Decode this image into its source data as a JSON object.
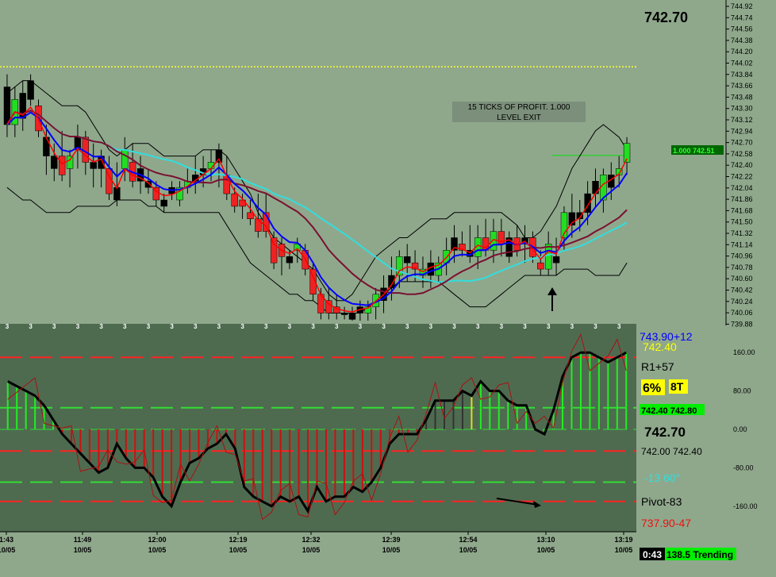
{
  "chart_data": {
    "type": "candlestick",
    "price_panel": {
      "ylim": [
        739.88,
        744.92
      ],
      "last_price": "742.70",
      "y_ticks": [
        "744.92",
        "744.74",
        "744.56",
        "744.38",
        "744.20",
        "744.02",
        "743.84",
        "743.66",
        "743.48",
        "743.30",
        "743.12",
        "742.94",
        "742.70",
        "742.58",
        "742.40",
        "742.22",
        "742.04",
        "741.86",
        "741.68",
        "741.50",
        "741.32",
        "741.14",
        "740.96",
        "740.78",
        "740.60",
        "740.42",
        "740.24",
        "740.06",
        "739.88"
      ],
      "resistance_line": 743.92,
      "annotation_line1": "15 TICKS OF PROFIT. 1.000",
      "annotation_line2": "LEVEL EXIT",
      "target_label": "1.000 742.51",
      "target_price": 742.51,
      "bar_marker": "3",
      "candles": [
        {
          "o": 743.6,
          "h": 743.8,
          "l": 742.8,
          "c": 743.0,
          "up": false
        },
        {
          "o": 743.0,
          "h": 743.6,
          "l": 742.8,
          "c": 743.4,
          "up": true
        },
        {
          "o": 743.5,
          "h": 743.7,
          "l": 742.9,
          "c": 743.1,
          "up": false
        },
        {
          "o": 743.7,
          "h": 743.8,
          "l": 743.3,
          "c": 743.4,
          "up": false
        },
        {
          "o": 743.3,
          "h": 743.4,
          "l": 742.8,
          "c": 742.9,
          "up": false
        },
        {
          "o": 742.8,
          "h": 743.0,
          "l": 742.2,
          "c": 742.5,
          "up": false
        },
        {
          "o": 742.5,
          "h": 742.7,
          "l": 742.1,
          "c": 742.3,
          "up": false
        },
        {
          "o": 742.5,
          "h": 742.9,
          "l": 742.1,
          "c": 742.2,
          "up": false
        },
        {
          "o": 742.3,
          "h": 742.6,
          "l": 742.0,
          "c": 742.5,
          "up": true
        },
        {
          "o": 742.6,
          "h": 743.0,
          "l": 742.3,
          "c": 742.8,
          "up": false
        },
        {
          "o": 742.8,
          "h": 742.9,
          "l": 742.2,
          "c": 742.4,
          "up": false
        },
        {
          "o": 742.4,
          "h": 742.7,
          "l": 742.0,
          "c": 742.3,
          "up": false
        },
        {
          "o": 742.3,
          "h": 742.6,
          "l": 742.0,
          "c": 742.5,
          "up": false
        },
        {
          "o": 742.3,
          "h": 742.5,
          "l": 741.8,
          "c": 741.9,
          "up": false
        },
        {
          "o": 742.0,
          "h": 742.4,
          "l": 741.7,
          "c": 741.8,
          "up": false
        },
        {
          "o": 742.3,
          "h": 742.8,
          "l": 742.1,
          "c": 742.6,
          "up": true
        },
        {
          "o": 742.4,
          "h": 742.7,
          "l": 742.0,
          "c": 742.1,
          "up": false
        },
        {
          "o": 742.3,
          "h": 742.5,
          "l": 741.9,
          "c": 742.1,
          "up": false
        },
        {
          "o": 742.1,
          "h": 742.3,
          "l": 741.9,
          "c": 742.0,
          "up": false
        },
        {
          "o": 742.0,
          "h": 742.1,
          "l": 741.7,
          "c": 741.8,
          "up": false
        },
        {
          "o": 741.7,
          "h": 741.9,
          "l": 741.6,
          "c": 741.8,
          "up": false
        },
        {
          "o": 742.0,
          "h": 742.1,
          "l": 741.8,
          "c": 741.9,
          "up": false
        },
        {
          "o": 741.8,
          "h": 742.1,
          "l": 741.7,
          "c": 742.0,
          "up": true
        },
        {
          "o": 742.0,
          "h": 742.3,
          "l": 741.9,
          "c": 742.1,
          "up": true
        },
        {
          "o": 742.1,
          "h": 742.5,
          "l": 741.9,
          "c": 742.2,
          "up": false
        },
        {
          "o": 742.2,
          "h": 742.5,
          "l": 742.0,
          "c": 742.3,
          "up": false
        },
        {
          "o": 742.3,
          "h": 742.6,
          "l": 742.1,
          "c": 742.4,
          "up": true
        },
        {
          "o": 742.4,
          "h": 742.7,
          "l": 742.0,
          "c": 742.6,
          "up": false
        },
        {
          "o": 742.2,
          "h": 742.5,
          "l": 741.8,
          "c": 741.9,
          "up": false
        },
        {
          "o": 741.9,
          "h": 742.0,
          "l": 741.6,
          "c": 741.7,
          "up": false
        },
        {
          "o": 741.8,
          "h": 741.9,
          "l": 741.5,
          "c": 741.7,
          "up": false
        },
        {
          "o": 741.6,
          "h": 741.8,
          "l": 741.4,
          "c": 741.5,
          "up": false
        },
        {
          "o": 741.5,
          "h": 741.9,
          "l": 741.2,
          "c": 741.3,
          "up": false
        },
        {
          "o": 741.6,
          "h": 741.9,
          "l": 741.2,
          "c": 741.3,
          "up": false
        },
        {
          "o": 741.2,
          "h": 741.3,
          "l": 740.7,
          "c": 740.8,
          "up": false
        },
        {
          "o": 741.1,
          "h": 741.2,
          "l": 740.6,
          "c": 740.9,
          "up": false
        },
        {
          "o": 740.8,
          "h": 741.0,
          "l": 740.7,
          "c": 740.9,
          "up": false
        },
        {
          "o": 741.0,
          "h": 741.2,
          "l": 740.8,
          "c": 741.1,
          "up": true
        },
        {
          "o": 741.0,
          "h": 741.1,
          "l": 740.6,
          "c": 740.7,
          "up": false
        },
        {
          "o": 740.7,
          "h": 740.8,
          "l": 740.2,
          "c": 740.3,
          "up": false
        },
        {
          "o": 740.3,
          "h": 740.4,
          "l": 739.9,
          "c": 740.0,
          "up": false
        },
        {
          "o": 740.2,
          "h": 740.4,
          "l": 739.9,
          "c": 740.0,
          "up": false
        },
        {
          "o": 740.1,
          "h": 740.3,
          "l": 739.9,
          "c": 740.0,
          "up": false
        },
        {
          "o": 740.0,
          "h": 740.1,
          "l": 739.9,
          "c": 740.0,
          "up": false
        },
        {
          "o": 739.9,
          "h": 740.1,
          "l": 739.88,
          "c": 740.0,
          "up": false
        },
        {
          "o": 740.0,
          "h": 740.2,
          "l": 739.88,
          "c": 740.1,
          "up": false
        },
        {
          "o": 740.0,
          "h": 740.2,
          "l": 739.88,
          "c": 740.1,
          "up": true
        },
        {
          "o": 740.1,
          "h": 740.4,
          "l": 739.9,
          "c": 740.3,
          "up": true
        },
        {
          "o": 740.2,
          "h": 740.6,
          "l": 740.0,
          "c": 740.4,
          "up": false
        },
        {
          "o": 740.4,
          "h": 740.9,
          "l": 740.2,
          "c": 740.6,
          "up": false
        },
        {
          "o": 740.6,
          "h": 741.0,
          "l": 740.4,
          "c": 740.9,
          "up": true
        },
        {
          "o": 740.9,
          "h": 741.1,
          "l": 740.5,
          "c": 740.8,
          "up": false
        },
        {
          "o": 740.8,
          "h": 741.0,
          "l": 740.5,
          "c": 740.7,
          "up": false
        },
        {
          "o": 740.7,
          "h": 740.9,
          "l": 740.4,
          "c": 740.6,
          "up": true
        },
        {
          "o": 740.6,
          "h": 741.0,
          "l": 740.4,
          "c": 740.8,
          "up": false
        },
        {
          "o": 740.6,
          "h": 740.9,
          "l": 740.5,
          "c": 740.8,
          "up": true
        },
        {
          "o": 740.8,
          "h": 741.2,
          "l": 740.6,
          "c": 741.0,
          "up": true
        },
        {
          "o": 741.0,
          "h": 741.4,
          "l": 740.8,
          "c": 741.2,
          "up": false
        },
        {
          "o": 741.1,
          "h": 741.3,
          "l": 740.9,
          "c": 741.0,
          "up": false
        },
        {
          "o": 741.0,
          "h": 741.4,
          "l": 740.8,
          "c": 740.9,
          "up": false
        },
        {
          "o": 740.9,
          "h": 741.4,
          "l": 740.7,
          "c": 741.2,
          "up": true
        },
        {
          "o": 741.2,
          "h": 741.5,
          "l": 740.9,
          "c": 741.0,
          "up": false
        },
        {
          "o": 741.0,
          "h": 741.5,
          "l": 740.8,
          "c": 741.3,
          "up": true
        },
        {
          "o": 741.3,
          "h": 741.5,
          "l": 740.9,
          "c": 741.1,
          "up": false
        },
        {
          "o": 740.9,
          "h": 741.3,
          "l": 740.8,
          "c": 741.2,
          "up": false
        },
        {
          "o": 741.2,
          "h": 741.4,
          "l": 740.9,
          "c": 741.0,
          "up": false
        },
        {
          "o": 741.1,
          "h": 741.4,
          "l": 740.8,
          "c": 741.2,
          "up": false
        },
        {
          "o": 741.2,
          "h": 741.3,
          "l": 740.8,
          "c": 740.9,
          "up": false
        },
        {
          "o": 740.8,
          "h": 741.0,
          "l": 740.6,
          "c": 740.7,
          "up": false
        },
        {
          "o": 740.7,
          "h": 741.3,
          "l": 740.6,
          "c": 741.1,
          "up": true
        },
        {
          "o": 740.8,
          "h": 741.2,
          "l": 740.6,
          "c": 740.9,
          "up": false
        },
        {
          "o": 741.2,
          "h": 741.7,
          "l": 741.0,
          "c": 741.6,
          "up": true
        },
        {
          "o": 741.4,
          "h": 741.9,
          "l": 741.2,
          "c": 741.6,
          "up": false
        },
        {
          "o": 741.5,
          "h": 741.8,
          "l": 741.3,
          "c": 741.6,
          "up": false
        },
        {
          "o": 741.6,
          "h": 742.1,
          "l": 741.4,
          "c": 741.9,
          "up": false
        },
        {
          "o": 741.9,
          "h": 742.3,
          "l": 741.7,
          "c": 742.1,
          "up": false
        },
        {
          "o": 741.8,
          "h": 742.3,
          "l": 741.6,
          "c": 742.2,
          "up": true
        },
        {
          "o": 742.0,
          "h": 742.4,
          "l": 741.8,
          "c": 742.2,
          "up": false
        },
        {
          "o": 742.2,
          "h": 742.5,
          "l": 742.0,
          "c": 742.3,
          "up": true
        },
        {
          "o": 742.4,
          "h": 742.8,
          "l": 742.2,
          "c": 742.7,
          "up": true
        }
      ],
      "lines": {
        "black_upper": [
          743.5,
          743.6,
          743.7,
          743.7,
          743.6,
          743.5,
          743.4,
          743.3,
          743.3,
          743.3,
          743.2,
          743.0,
          742.8,
          742.6,
          742.5,
          742.6,
          742.7,
          742.7,
          742.7,
          742.6,
          742.5,
          742.5,
          742.5,
          742.5,
          742.5,
          742.6,
          742.6,
          742.6,
          742.5,
          742.3,
          742.1,
          741.9,
          741.6,
          741.4,
          741.2,
          741.1,
          741.0,
          740.9,
          740.8,
          740.7,
          740.5,
          740.3,
          740.2,
          740.2,
          740.3,
          740.5,
          740.7,
          740.9,
          741.0,
          741.1,
          741.2,
          741.2,
          741.3,
          741.4,
          741.5,
          741.5,
          741.5,
          741.6,
          741.6,
          741.6,
          741.6,
          741.6,
          741.6,
          741.6,
          741.5,
          741.4,
          741.2,
          741.2,
          741.3,
          741.5,
          741.7,
          742.0,
          742.3,
          742.5,
          742.7,
          742.9,
          743.0,
          742.9,
          742.8,
          742.6
        ],
        "black_lower": [
          742.0,
          741.9,
          741.8,
          741.8,
          741.7,
          741.6,
          741.6,
          741.6,
          741.6,
          741.7,
          741.7,
          741.7,
          741.7,
          741.7,
          741.8,
          741.8,
          741.8,
          741.8,
          741.7,
          741.7,
          741.6,
          741.6,
          741.6,
          741.6,
          741.6,
          741.6,
          741.6,
          741.6,
          741.4,
          741.2,
          741.0,
          740.8,
          740.7,
          740.6,
          740.5,
          740.4,
          740.3,
          740.3,
          740.2,
          740.2,
          740.1,
          740.0,
          740.0,
          740.0,
          740.0,
          740.0,
          740.1,
          740.2,
          740.3,
          740.4,
          740.5,
          740.5,
          740.5,
          740.5,
          740.5,
          740.5,
          740.4,
          740.3,
          740.2,
          740.1,
          740.1,
          740.1,
          740.2,
          740.3,
          740.4,
          740.5,
          740.6,
          740.6,
          740.6,
          740.6,
          740.6,
          740.7,
          740.7,
          740.7,
          740.7,
          740.6,
          740.6,
          740.6,
          740.6,
          740.8
        ]
      }
    },
    "oscillator_panel": {
      "ylim": [
        -200,
        200
      ],
      "y_ticks": [
        "160.00",
        "80.00",
        "0.00",
        "-80.00",
        "-160.00"
      ],
      "series": [
        {
          "values": [
            100,
            90,
            80,
            70,
            50,
            20,
            -10,
            -30,
            -50,
            -70,
            -90,
            -80,
            -30,
            -60,
            -80,
            -80,
            -100,
            -140,
            -160,
            -110,
            -70,
            -60,
            -40,
            -30,
            -10,
            -40,
            -120,
            -140,
            -150,
            -160,
            -140,
            -150,
            -140,
            -170,
            -120,
            -150,
            -140,
            -140,
            -120,
            -130,
            -110,
            -80,
            -30,
            -10,
            -10,
            -10,
            20,
            60,
            60,
            60,
            80,
            70,
            100,
            80,
            80,
            60,
            50,
            50,
            0,
            -10,
            40,
            110,
            150,
            160,
            160,
            150,
            140,
            150,
            160
          ],
          "colors": [
            "g",
            "g",
            "g",
            "g",
            "g",
            "g",
            "r",
            "r",
            "r",
            "r",
            "r",
            "r",
            "r",
            "r",
            "r",
            "r",
            "r",
            "r",
            "r",
            "r",
            "r",
            "r",
            "r",
            "r",
            "r",
            "r",
            "r",
            "r",
            "r",
            "r",
            "r",
            "r",
            "r",
            "r",
            "r",
            "r",
            "r",
            "r",
            "r",
            "r",
            "r",
            "r",
            "r",
            "r",
            "r",
            "r",
            "d",
            "d",
            "d",
            "d",
            "d",
            "y",
            "g",
            "g",
            "g",
            "g",
            "g",
            "g",
            "g",
            "g",
            "g",
            "g",
            "g",
            "g",
            "g",
            "g",
            "g",
            "g",
            "g"
          ]
        }
      ],
      "levels": [
        150,
        45,
        -45,
        -110,
        -150
      ]
    },
    "x_tick_labels": [
      {
        "time": "1:43",
        "date": "10/05"
      },
      {
        "time": "11:49",
        "date": "10/05"
      },
      {
        "time": "12:00",
        "date": "10/05"
      },
      {
        "time": "12:19",
        "date": "10/05"
      },
      {
        "time": "12:32",
        "date": "10/05"
      },
      {
        "time": "12:39",
        "date": "10/05"
      },
      {
        "time": "12:54",
        "date": "10/05"
      },
      {
        "time": "13:10",
        "date": "10/05"
      },
      {
        "time": "13:19",
        "date": "10/05"
      }
    ],
    "side_panel": {
      "line1": "743.90+12",
      "line2": "742.40",
      "line3": "R1+57",
      "pct": "6%",
      "ticks": "8T",
      "range": "742.40 742.80",
      "last": "742.70",
      "bid_ask": "742.00 742.40",
      "angle": "-13  60°",
      "pivot": "Pivot-83",
      "support": "737.90-47",
      "timer": "0:43",
      "trend": "138.5 Trending"
    },
    "colors": {
      "background": "#8fa88c",
      "osc_background": "#4e6b50",
      "up": "#22dd22",
      "down": "#ee2222",
      "ema_blue": "#0000ff",
      "ema_red": "#ff0000",
      "ma_cyan": "#33dddd",
      "ma_maroon": "#7a1030",
      "resistance": "#ffff33"
    }
  }
}
